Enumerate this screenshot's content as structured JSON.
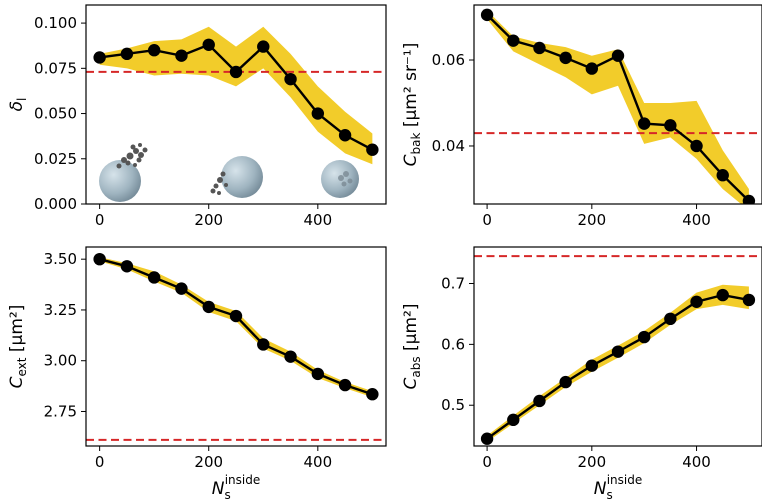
{
  "colors": {
    "band": "#f2cc2a",
    "line": "#000000",
    "reference": "#d62728",
    "marker": "#000000"
  },
  "chart_data": [
    {
      "type": "line",
      "panel": "top-left",
      "x": [
        0,
        50,
        100,
        150,
        200,
        250,
        300,
        350,
        400,
        450,
        500
      ],
      "values": [
        0.081,
        0.083,
        0.085,
        0.082,
        0.088,
        0.073,
        0.087,
        0.069,
        0.05,
        0.038,
        0.03
      ],
      "band_upper": [
        0.083,
        0.086,
        0.09,
        0.091,
        0.098,
        0.087,
        0.098,
        0.083,
        0.065,
        0.051,
        0.039
      ],
      "band_lower": [
        0.077,
        0.075,
        0.071,
        0.072,
        0.071,
        0.065,
        0.075,
        0.059,
        0.04,
        0.028,
        0.022
      ],
      "reference": 0.073,
      "ylim": [
        0,
        0.11
      ],
      "xlim": [
        -25,
        525
      ],
      "xticks": [
        "0",
        "200",
        "400"
      ],
      "yticks": [
        "0.000",
        "0.025",
        "0.050",
        "0.075",
        "0.100"
      ],
      "ylabel": "δ",
      "ylabel_sub": "l",
      "xlabel": "",
      "grid": false
    },
    {
      "type": "line",
      "panel": "top-right",
      "x": [
        0,
        50,
        100,
        150,
        200,
        250,
        300,
        350,
        400,
        450,
        500
      ],
      "values": [
        0.0705,
        0.0645,
        0.0628,
        0.0605,
        0.058,
        0.061,
        0.0452,
        0.0448,
        0.04,
        0.0332,
        0.0272
      ],
      "band_upper": [
        0.0715,
        0.0655,
        0.064,
        0.063,
        0.061,
        0.0625,
        0.05,
        0.05,
        0.0505,
        0.039,
        0.03
      ],
      "band_lower": [
        0.0695,
        0.062,
        0.059,
        0.056,
        0.052,
        0.054,
        0.0405,
        0.042,
        0.037,
        0.03,
        0.025
      ],
      "reference": 0.043,
      "ylim": [
        0.0265,
        0.0728
      ],
      "xlim": [
        -25,
        525
      ],
      "xticks": [
        "0",
        "200",
        "400"
      ],
      "yticks": [
        "0.04",
        "0.06"
      ],
      "ylabel": "C",
      "ylabel_sub": "bak",
      "ylabel_unit": " [μm² sr⁻¹]",
      "xlabel": "",
      "grid": false
    },
    {
      "type": "line",
      "panel": "bottom-left",
      "x": [
        0,
        50,
        100,
        150,
        200,
        250,
        300,
        350,
        400,
        450,
        500
      ],
      "values": [
        3.5,
        3.465,
        3.41,
        3.355,
        3.265,
        3.22,
        3.08,
        3.02,
        2.935,
        2.88,
        2.835
      ],
      "band_upper": [
        3.51,
        3.48,
        3.44,
        3.375,
        3.29,
        3.245,
        3.11,
        3.045,
        2.955,
        2.895,
        2.85
      ],
      "band_lower": [
        3.49,
        3.45,
        3.39,
        3.335,
        3.24,
        3.195,
        3.06,
        3.0,
        2.915,
        2.865,
        2.82
      ],
      "reference": 2.61,
      "ylim": [
        2.58,
        3.56
      ],
      "xlim": [
        -25,
        525
      ],
      "xticks": [
        "0",
        "200",
        "400"
      ],
      "yticks": [
        "2.75",
        "3.00",
        "3.25",
        "3.50"
      ],
      "ylabel": "C",
      "ylabel_sub": "ext",
      "ylabel_unit": " [μm²]",
      "xlabel": "N",
      "xlabel_sub": "s",
      "xlabel_sup": "inside",
      "grid": false
    },
    {
      "type": "line",
      "panel": "bottom-right",
      "x": [
        0,
        50,
        100,
        150,
        200,
        250,
        300,
        350,
        400,
        450,
        500
      ],
      "values": [
        0.445,
        0.476,
        0.507,
        0.538,
        0.565,
        0.588,
        0.612,
        0.642,
        0.67,
        0.681,
        0.673
      ],
      "band_upper": [
        0.45,
        0.483,
        0.515,
        0.545,
        0.575,
        0.598,
        0.622,
        0.652,
        0.685,
        0.698,
        0.695
      ],
      "band_lower": [
        0.44,
        0.47,
        0.5,
        0.53,
        0.555,
        0.578,
        0.602,
        0.632,
        0.658,
        0.665,
        0.658
      ],
      "reference": 0.745,
      "ylim": [
        0.433,
        0.76
      ],
      "xlim": [
        -25,
        525
      ],
      "xticks": [
        "0",
        "200",
        "400"
      ],
      "yticks": [
        "0.5",
        "0.6",
        "0.7"
      ],
      "ylabel": "C",
      "ylabel_sub": "abs",
      "ylabel_unit": " [μm²]",
      "xlabel": "N",
      "xlabel_sub": "s",
      "xlabel_sup": "inside",
      "grid": false
    }
  ]
}
